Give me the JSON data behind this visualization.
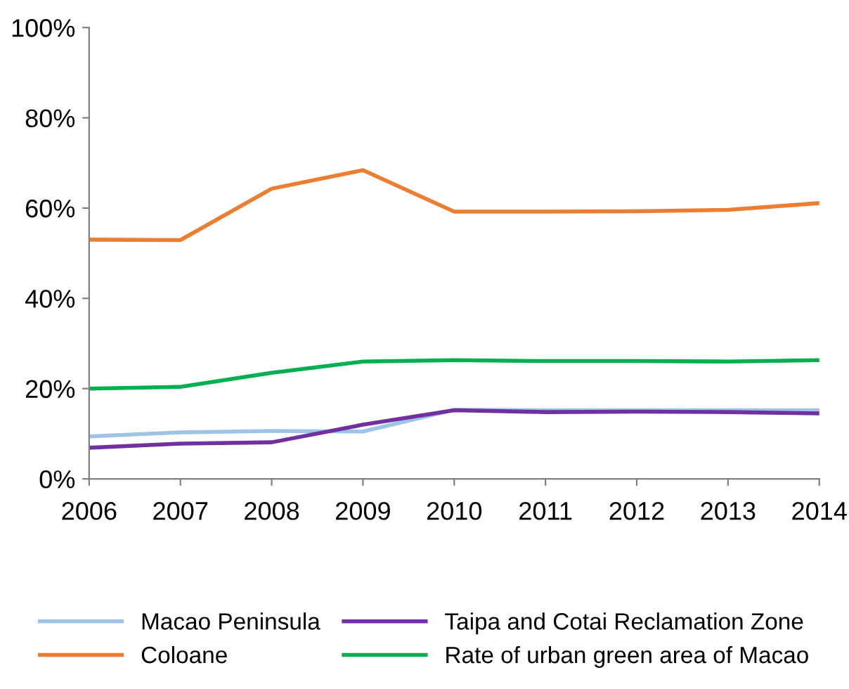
{
  "chart_data": {
    "type": "line",
    "categories": [
      "2006",
      "2007",
      "2008",
      "2009",
      "2010",
      "2011",
      "2012",
      "2013",
      "2014"
    ],
    "series": [
      {
        "name": "Macao Peninsula",
        "color": "#9dc3e6",
        "values": [
          9.4,
          10.3,
          10.6,
          10.5,
          15.3,
          15.2,
          15.2,
          15.2,
          15.2
        ]
      },
      {
        "name": "Coloane",
        "color": "#ed7d31",
        "values": [
          53,
          52.9,
          64.3,
          68.4,
          59.2,
          59.2,
          59.3,
          59.6,
          61.1
        ]
      },
      {
        "name": "Taipa and Cotai Reclamation Zone",
        "color": "#7030a0",
        "values": [
          6.9,
          7.8,
          8.1,
          12,
          15.2,
          14.8,
          14.9,
          14.8,
          14.5
        ]
      },
      {
        "name": "Rate of urban green area of Macao",
        "color": "#00b050",
        "values": [
          20,
          20.4,
          23.5,
          26,
          26.3,
          26.1,
          26.1,
          26,
          26.3
        ]
      }
    ],
    "ylim": [
      0,
      100
    ],
    "yticks": [
      {
        "value": 0,
        "label": "0%"
      },
      {
        "value": 20,
        "label": "20%"
      },
      {
        "value": 40,
        "label": "40%"
      },
      {
        "value": 60,
        "label": "60%"
      },
      {
        "value": 80,
        "label": "80%"
      },
      {
        "value": 100,
        "label": "100%"
      }
    ],
    "grid": false,
    "legend": "bottom",
    "marker": "none",
    "line_style": "solid"
  }
}
